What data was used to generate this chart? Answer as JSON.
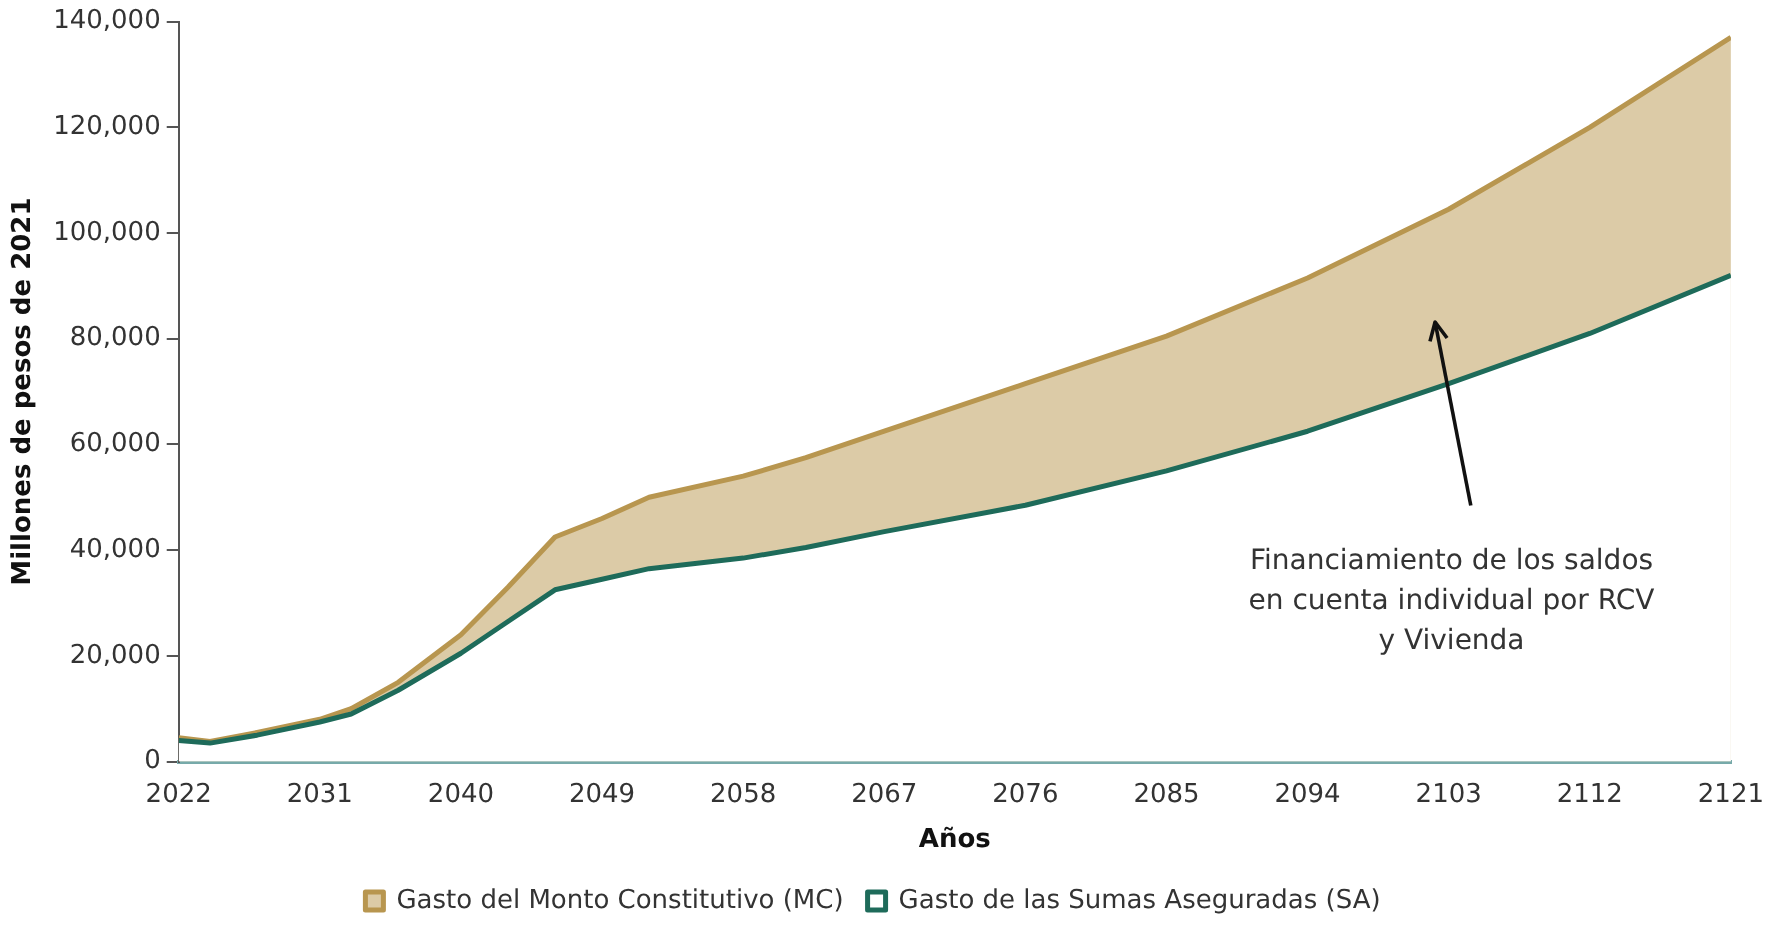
{
  "chart_data": {
    "type": "area",
    "xlabel": "Años",
    "ylabel": "Millones de pesos de 2021",
    "x": [
      2022,
      2024,
      2027,
      2031,
      2033,
      2036,
      2040,
      2043,
      2046,
      2049,
      2052,
      2058,
      2062,
      2067,
      2076,
      2085,
      2094,
      2103,
      2112,
      2121
    ],
    "series": [
      {
        "name": "Gasto del Monto Constitutivo (MC)",
        "color": "#b8964f",
        "values": [
          4500,
          3800,
          5500,
          8000,
          10000,
          15000,
          24000,
          33000,
          42500,
          46000,
          50000,
          54000,
          57500,
          62500,
          71500,
          80500,
          91500,
          104500,
          120000,
          137000
        ]
      },
      {
        "name": "Gasto de las Sumas Aseguradas (SA)",
        "color": "#1e6b5a",
        "values": [
          4000,
          3500,
          5000,
          7500,
          9000,
          13500,
          20500,
          26500,
          32500,
          34500,
          36500,
          38500,
          40500,
          43500,
          48500,
          55000,
          62500,
          71500,
          81000,
          92000
        ]
      }
    ],
    "xlim": [
      2022,
      2121
    ],
    "xticks": [
      2022,
      2031,
      2040,
      2049,
      2058,
      2067,
      2076,
      2085,
      2094,
      2103,
      2112,
      2121
    ],
    "ylim": [
      0,
      140000
    ],
    "yticks": [
      0,
      {
        "value": 20000,
        "label": "20,000"
      },
      {
        "value": 40000,
        "label": "40,000"
      },
      {
        "value": 60000,
        "label": "60,000"
      },
      {
        "value": 80000,
        "label": "80,000"
      },
      {
        "value": 100000,
        "label": "100,000"
      },
      {
        "value": 120000,
        "label": "120,000"
      },
      {
        "value": 140000,
        "label": "140,000"
      }
    ],
    "annotations": [
      "Financiamiento de los saldos en cuenta individual por RCV y Vivienda"
    ],
    "grid": false,
    "legend": "bottom",
    "marker": "none"
  }
}
